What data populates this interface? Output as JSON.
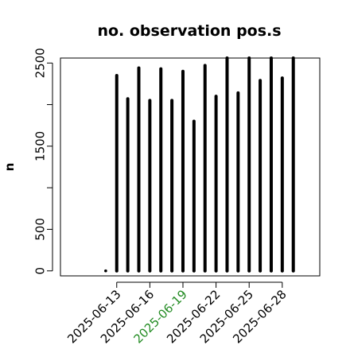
{
  "chart_data": {
    "type": "bar",
    "title": "no. observation pos.s",
    "xlabel": "",
    "ylabel": "n",
    "y_ticks": [
      0,
      500,
      1500,
      2500
    ],
    "ylim": [
      -60,
      2560
    ],
    "xlim": [
      -4.1,
      19.4
    ],
    "grid": false,
    "x_ticks": [
      {
        "pos": 1,
        "label": "2025-06-13",
        "color": "#000000"
      },
      {
        "pos": 4,
        "label": "2025-06-16",
        "color": "#000000"
      },
      {
        "pos": 7,
        "label": "2025-06-19",
        "color": "#228b22"
      },
      {
        "pos": 10,
        "label": "2025-06-22",
        "color": "#000000"
      },
      {
        "pos": 13,
        "label": "2025-06-25",
        "color": "#000000"
      },
      {
        "pos": 16,
        "label": "2025-06-28",
        "color": "#000000"
      }
    ],
    "x": [
      "2025-06-12",
      "2025-06-13",
      "2025-06-14",
      "2025-06-15",
      "2025-06-16",
      "2025-06-17",
      "2025-06-18",
      "2025-06-19",
      "2025-06-20",
      "2025-06-21",
      "2025-06-22",
      "2025-06-23",
      "2025-06-24",
      "2025-06-25",
      "2025-06-26",
      "2025-06-27",
      "2025-06-28",
      "2025-06-29"
    ],
    "values": [
      0,
      2350,
      2070,
      2440,
      2050,
      2430,
      2050,
      2400,
      1800,
      2470,
      2100,
      2560,
      2140,
      2560,
      2290,
      2560,
      2320,
      2560
    ],
    "color": "#000000"
  }
}
